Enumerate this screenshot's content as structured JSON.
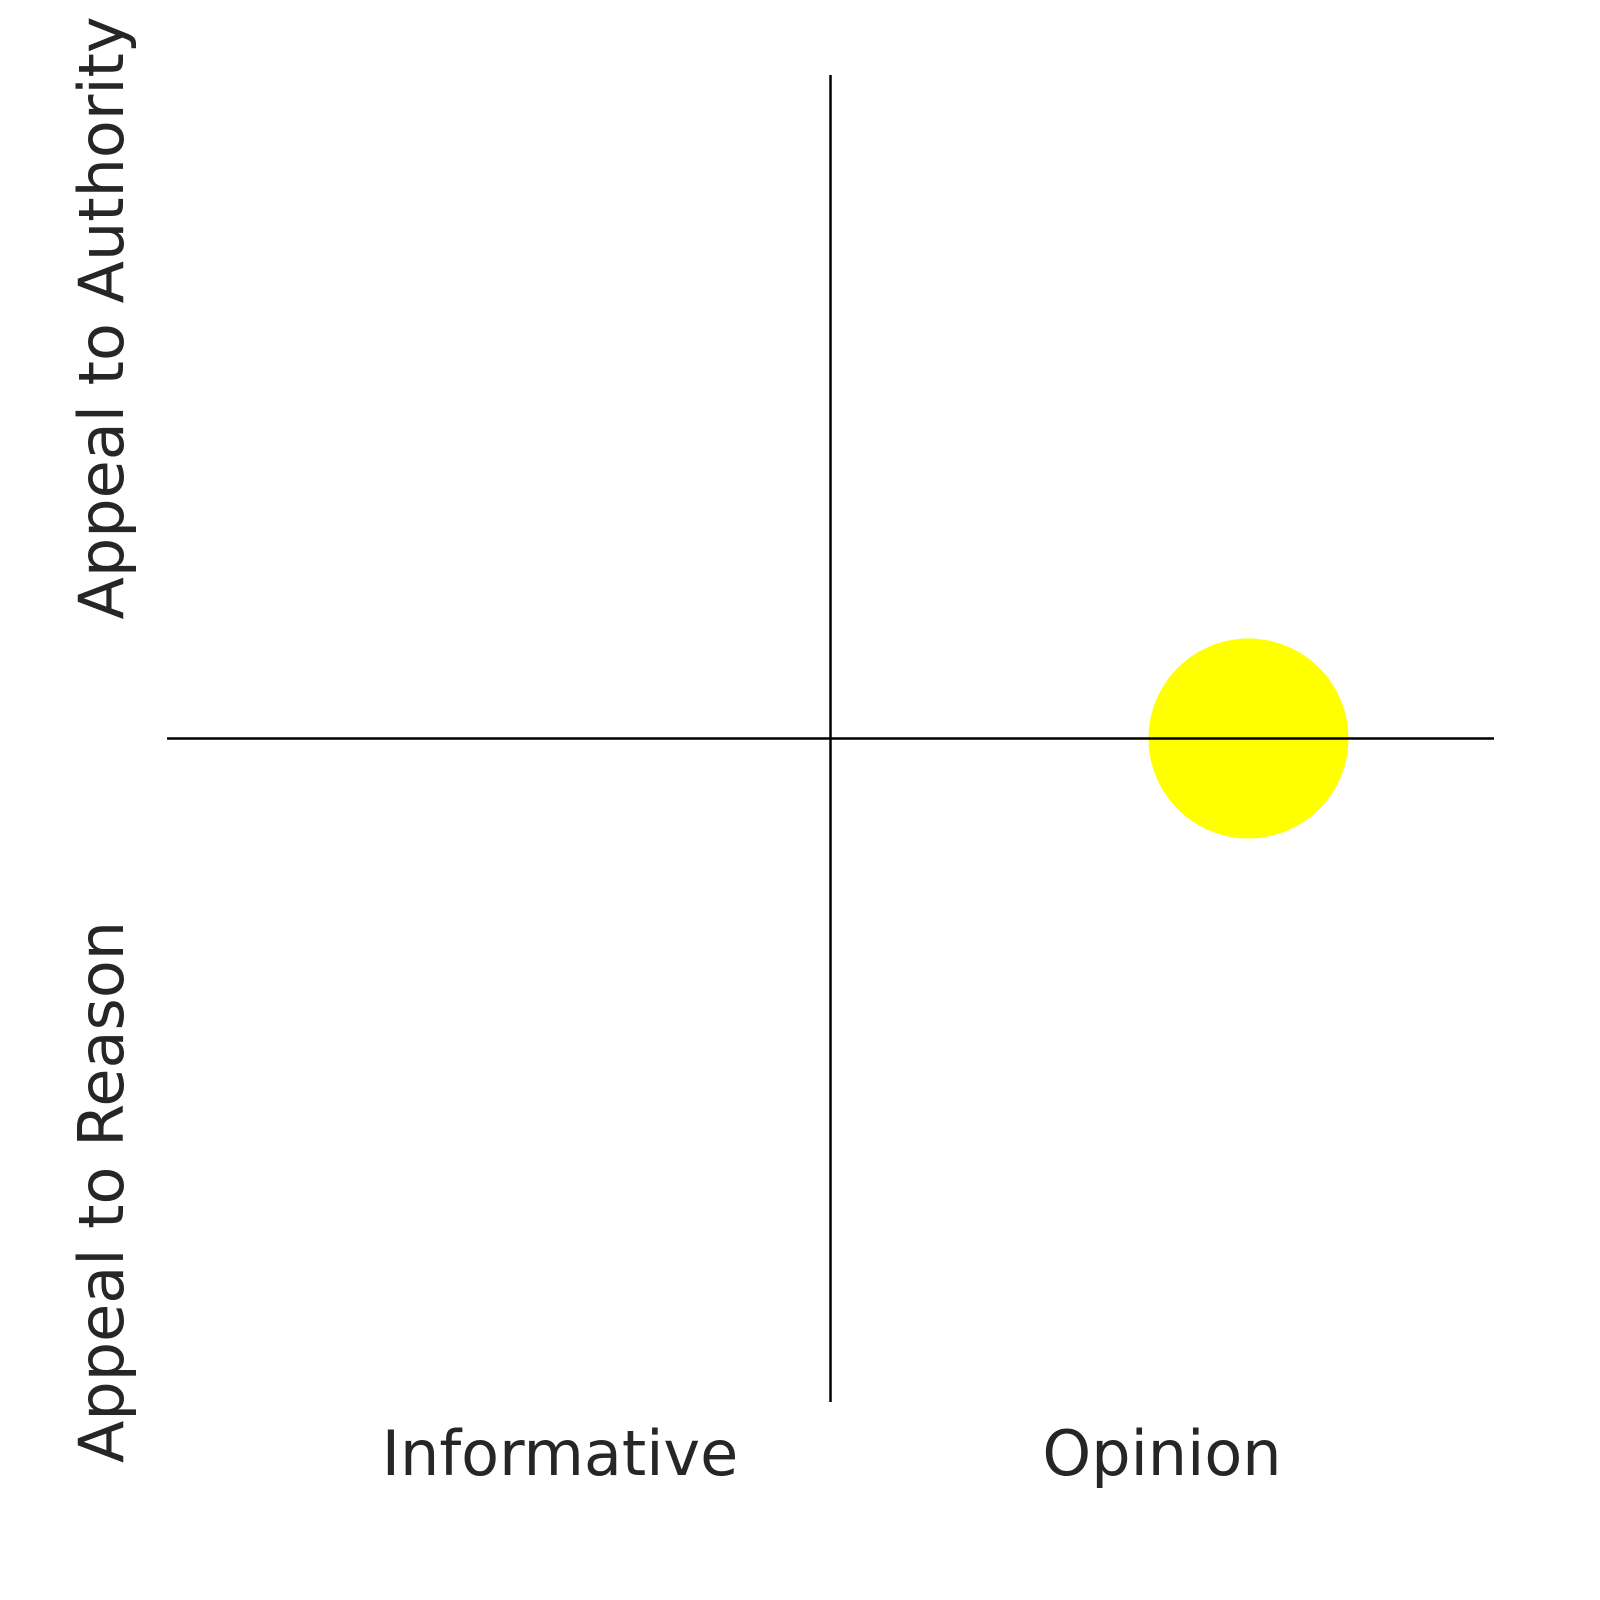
{
  "chart_data": {
    "type": "scatter",
    "x_labels": [
      "Informative",
      "Opinion"
    ],
    "y_labels": [
      "Appeal to Reason",
      "Appeal to Authority"
    ],
    "x": [
      0.63
    ],
    "y": [
      0
    ],
    "color": "#ffff00",
    "xlim": [
      -1,
      1
    ],
    "ylim": [
      -1,
      1
    ]
  }
}
